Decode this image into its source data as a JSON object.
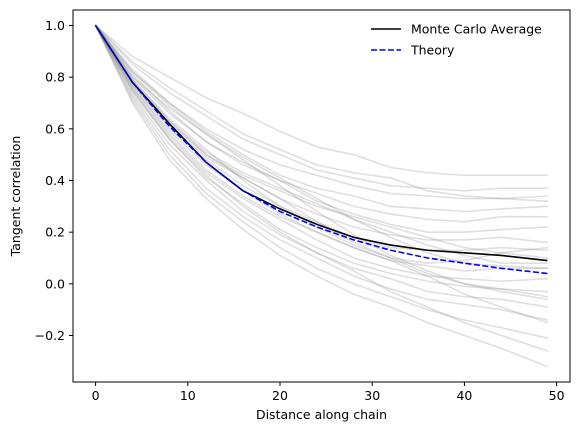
{
  "chart_data": {
    "type": "line",
    "title": "",
    "xlabel": "Distance along chain",
    "ylabel": "Tangent correlation",
    "xlim": [
      -2.45,
      51.45
    ],
    "ylim": [
      -0.38,
      1.06
    ],
    "xticks": [
      0,
      10,
      20,
      30,
      40,
      50
    ],
    "yticks": [
      -0.2,
      0.0,
      0.2,
      0.4,
      0.6,
      0.8,
      1.0
    ],
    "xtick_labels": [
      "0",
      "10",
      "20",
      "30",
      "40",
      "50"
    ],
    "ytick_labels": [
      "−0.2",
      "0.0",
      "0.2",
      "0.4",
      "0.6",
      "0.8",
      "1.0"
    ],
    "grid": false,
    "legend_position": "top-right",
    "x": [
      0,
      4,
      8,
      12,
      16,
      20,
      24,
      28,
      32,
      36,
      40,
      44,
      49
    ],
    "series": [
      {
        "name": "Monte Carlo Average",
        "color": "#000000",
        "dash": "solid",
        "values": [
          1.0,
          0.78,
          0.62,
          0.47,
          0.36,
          0.29,
          0.23,
          0.18,
          0.15,
          0.13,
          0.12,
          0.11,
          0.09
        ]
      },
      {
        "name": "Theory",
        "color": "#0000ff",
        "dash": "dashed",
        "values": [
          1.0,
          0.78,
          0.61,
          0.47,
          0.36,
          0.28,
          0.22,
          0.17,
          0.13,
          0.1,
          0.08,
          0.06,
          0.04
        ]
      }
    ],
    "trials_color": "#808080",
    "trials": [
      [
        1.0,
        0.88,
        0.8,
        0.72,
        0.66,
        0.59,
        0.53,
        0.5,
        0.45,
        0.43,
        0.42,
        0.42,
        0.42
      ],
      [
        1.0,
        0.85,
        0.74,
        0.65,
        0.56,
        0.5,
        0.44,
        0.41,
        0.38,
        0.37,
        0.36,
        0.37,
        0.37
      ],
      [
        1.0,
        0.86,
        0.76,
        0.67,
        0.58,
        0.52,
        0.46,
        0.43,
        0.41,
        0.36,
        0.34,
        0.33,
        0.34
      ],
      [
        1.0,
        0.82,
        0.7,
        0.6,
        0.52,
        0.46,
        0.42,
        0.38,
        0.35,
        0.34,
        0.33,
        0.33,
        0.32
      ],
      [
        1.0,
        0.83,
        0.7,
        0.59,
        0.5,
        0.42,
        0.37,
        0.34,
        0.3,
        0.29,
        0.28,
        0.29,
        0.3
      ],
      [
        1.0,
        0.8,
        0.66,
        0.55,
        0.46,
        0.4,
        0.35,
        0.3,
        0.27,
        0.25,
        0.24,
        0.26,
        0.26
      ],
      [
        1.0,
        0.81,
        0.67,
        0.55,
        0.47,
        0.4,
        0.32,
        0.27,
        0.23,
        0.2,
        0.2,
        0.21,
        0.22
      ],
      [
        1.0,
        0.79,
        0.63,
        0.5,
        0.41,
        0.33,
        0.27,
        0.22,
        0.19,
        0.17,
        0.17,
        0.18,
        0.16
      ],
      [
        1.0,
        0.77,
        0.6,
        0.48,
        0.38,
        0.3,
        0.24,
        0.18,
        0.14,
        0.13,
        0.13,
        0.14,
        0.13
      ],
      [
        1.0,
        0.76,
        0.59,
        0.46,
        0.36,
        0.27,
        0.2,
        0.14,
        0.09,
        0.07,
        0.05,
        0.06,
        0.06
      ],
      [
        1.0,
        0.75,
        0.57,
        0.43,
        0.33,
        0.25,
        0.17,
        0.1,
        0.06,
        0.03,
        0.02,
        0.01,
        0.02
      ],
      [
        1.0,
        0.74,
        0.56,
        0.41,
        0.31,
        0.21,
        0.14,
        0.08,
        0.04,
        0.01,
        -0.01,
        -0.02,
        -0.03
      ],
      [
        1.0,
        0.73,
        0.54,
        0.4,
        0.28,
        0.19,
        0.12,
        0.06,
        0.02,
        -0.03,
        -0.05,
        -0.06,
        -0.09
      ],
      [
        1.0,
        0.72,
        0.52,
        0.37,
        0.26,
        0.17,
        0.1,
        0.03,
        -0.02,
        -0.06,
        -0.08,
        -0.1,
        -0.14
      ],
      [
        1.0,
        0.71,
        0.5,
        0.35,
        0.24,
        0.14,
        0.06,
        0.0,
        -0.05,
        -0.1,
        -0.14,
        -0.17,
        -0.21
      ],
      [
        1.0,
        0.7,
        0.48,
        0.33,
        0.21,
        0.11,
        0.03,
        -0.04,
        -0.09,
        -0.15,
        -0.2,
        -0.25,
        -0.32
      ],
      [
        1.0,
        0.78,
        0.62,
        0.5,
        0.42,
        0.36,
        0.3,
        0.26,
        0.22,
        0.18,
        0.14,
        0.12,
        0.1
      ],
      [
        1.0,
        0.77,
        0.61,
        0.49,
        0.41,
        0.33,
        0.24,
        0.16,
        0.1,
        0.04,
        0.0,
        -0.02,
        -0.05
      ],
      [
        1.0,
        0.8,
        0.68,
        0.58,
        0.48,
        0.38,
        0.28,
        0.19,
        0.11,
        0.05,
        0.0,
        -0.03,
        -0.06
      ],
      [
        1.0,
        0.79,
        0.64,
        0.52,
        0.4,
        0.3,
        0.22,
        0.15,
        0.1,
        0.08,
        0.09,
        0.12,
        0.14
      ],
      [
        1.0,
        0.76,
        0.58,
        0.44,
        0.34,
        0.26,
        0.2,
        0.14,
        0.09,
        0.03,
        -0.04,
        -0.09,
        -0.15
      ],
      [
        1.0,
        0.75,
        0.56,
        0.42,
        0.3,
        0.2,
        0.12,
        0.05,
        -0.03,
        -0.09,
        -0.15,
        -0.2,
        -0.26
      ],
      [
        1.0,
        0.82,
        0.69,
        0.58,
        0.49,
        0.41,
        0.33,
        0.25,
        0.18,
        0.12,
        0.08,
        0.07,
        0.06
      ],
      [
        1.0,
        0.78,
        0.63,
        0.51,
        0.43,
        0.37,
        0.31,
        0.25,
        0.2,
        0.15,
        0.11,
        0.08,
        0.08
      ]
    ]
  }
}
